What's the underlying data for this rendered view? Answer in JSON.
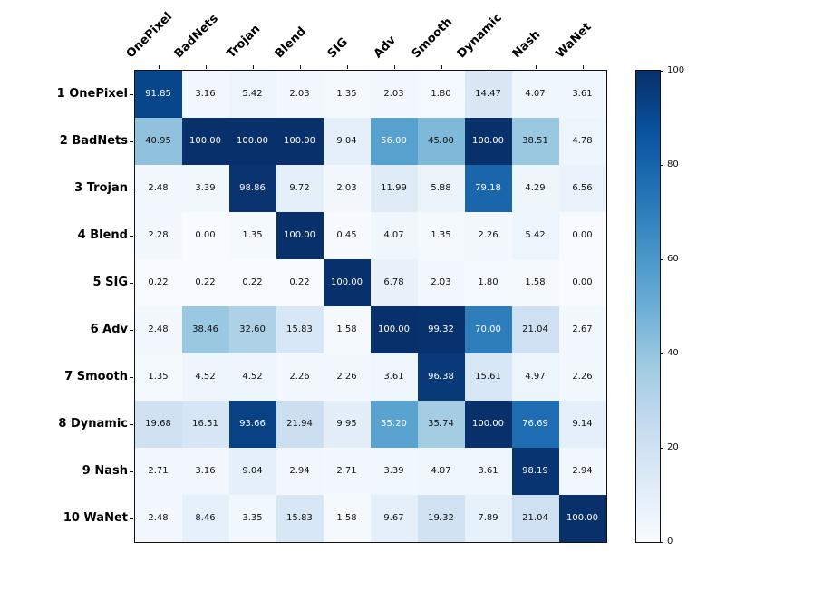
{
  "chart_data": {
    "type": "heatmap",
    "title": "",
    "xlabel": "",
    "ylabel": "",
    "columns": [
      "OnePixel",
      "BadNets",
      "Trojan",
      "Blend",
      "SIG",
      "Adv",
      "Smooth",
      "Dynamic",
      "Nash",
      "WaNet"
    ],
    "rows": [
      "1 OnePixel",
      "2 BadNets",
      "3 Trojan",
      "4 Blend",
      "5 SIG",
      "6 Adv",
      "7 Smooth",
      "8 Dynamic",
      "9 Nash",
      "10 WaNet"
    ],
    "matrix": [
      [
        91.85,
        3.16,
        5.42,
        2.03,
        1.35,
        2.03,
        1.8,
        14.47,
        4.07,
        3.61
      ],
      [
        40.95,
        100.0,
        100.0,
        100.0,
        9.04,
        56.0,
        45.0,
        100.0,
        38.51,
        4.78
      ],
      [
        2.48,
        3.39,
        98.86,
        9.72,
        2.03,
        11.99,
        5.88,
        79.18,
        4.29,
        6.56
      ],
      [
        2.28,
        0.0,
        1.35,
        100.0,
        0.45,
        4.07,
        1.35,
        2.26,
        5.42,
        0.0
      ],
      [
        0.22,
        0.22,
        0.22,
        0.22,
        100.0,
        6.78,
        2.03,
        1.8,
        1.58,
        0.0
      ],
      [
        2.48,
        38.46,
        32.6,
        15.83,
        1.58,
        100.0,
        99.32,
        70.0,
        21.04,
        2.67
      ],
      [
        1.35,
        4.52,
        4.52,
        2.26,
        2.26,
        3.61,
        96.38,
        15.61,
        4.97,
        2.26
      ],
      [
        19.68,
        16.51,
        93.66,
        21.94,
        9.95,
        55.2,
        35.74,
        100.0,
        76.69,
        9.14
      ],
      [
        2.71,
        3.16,
        9.04,
        2.94,
        2.71,
        3.39,
        4.07,
        3.61,
        98.19,
        2.94
      ],
      [
        2.48,
        8.46,
        3.35,
        15.83,
        1.58,
        9.67,
        19.32,
        7.89,
        21.04,
        100.0
      ]
    ],
    "value_decimals": 2,
    "vmin": 0,
    "vmax": 100,
    "colormap": "Blues",
    "colormap_stops": [
      "#f7fbff",
      "#deebf7",
      "#c6dbef",
      "#9ecae1",
      "#6baed6",
      "#4292c6",
      "#2171b5",
      "#08519c",
      "#08306b"
    ],
    "colorbar_ticks": [
      "0",
      "20",
      "40",
      "60",
      "80",
      "100"
    ],
    "legend_position": "right",
    "grid": false,
    "cell_text_color_dark": "#111111",
    "cell_text_color_light": "#ffffff",
    "text_color_threshold": 50,
    "axis_color": "#111111",
    "background_color": "#ffffff"
  }
}
